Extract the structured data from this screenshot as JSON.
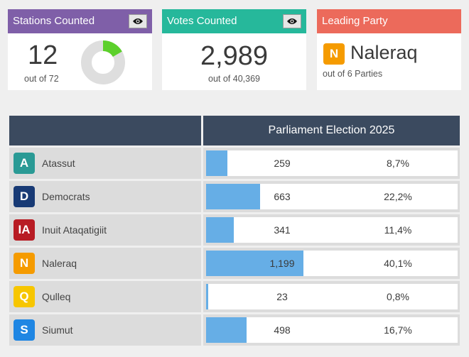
{
  "cards": {
    "stations": {
      "title": "Stations Counted",
      "value": "12",
      "sub": "out of 72",
      "counted": 12,
      "total": 72,
      "color": "#7f5fa8",
      "accent": "#5cd02b",
      "icon": "eye-icon"
    },
    "votes": {
      "title": "Votes Counted",
      "value": "2,989",
      "sub": "out of 40,369",
      "color": "#26b89b",
      "icon": "eye-icon"
    },
    "leading": {
      "title": "Leading Party",
      "badge": "N",
      "party": "Naleraq",
      "sub": "out of 6 Parties",
      "color": "#ec6a5b",
      "badge_color": "#f59b00"
    }
  },
  "table": {
    "header": "Parliament Election 2025",
    "rows": [
      {
        "badge": "A",
        "name": "Atassut",
        "votes": "259",
        "pct": "8,7%",
        "share": 8.7,
        "color": "#2a9a95"
      },
      {
        "badge": "D",
        "name": "Democrats",
        "votes": "663",
        "pct": "22,2%",
        "share": 22.2,
        "color": "#183a75"
      },
      {
        "badge": "IA",
        "name": "Inuit Ataqatigiit",
        "votes": "341",
        "pct": "11,4%",
        "share": 11.4,
        "color": "#b81c24"
      },
      {
        "badge": "N",
        "name": "Naleraq",
        "votes": "1,199",
        "pct": "40,1%",
        "share": 40.1,
        "color": "#f59b00"
      },
      {
        "badge": "Q",
        "name": "Qulleq",
        "votes": "23",
        "pct": "0,8%",
        "share": 0.8,
        "color": "#f7c600"
      },
      {
        "badge": "S",
        "name": "Siumut",
        "votes": "498",
        "pct": "16,7%",
        "share": 16.7,
        "color": "#1f86e3"
      }
    ]
  }
}
